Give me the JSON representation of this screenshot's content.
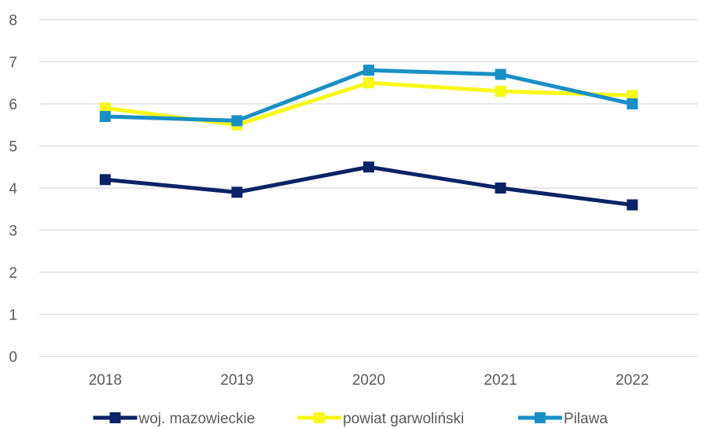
{
  "chart_data": {
    "type": "line",
    "title": "",
    "xlabel": "",
    "ylabel": "",
    "categories": [
      "2018",
      "2019",
      "2020",
      "2021",
      "2022"
    ],
    "ylim": [
      0,
      8
    ],
    "yticks": [
      0,
      1,
      2,
      3,
      4,
      5,
      6,
      7,
      8
    ],
    "grid": true,
    "legend_position": "bottom",
    "series": [
      {
        "name": "woj. mazowieckie",
        "color": "#0b2366",
        "values": [
          4.2,
          3.9,
          4.5,
          4.0,
          3.6
        ]
      },
      {
        "name": "powiat garwoliński",
        "color": "#f7f71a",
        "values": [
          5.9,
          5.5,
          6.5,
          6.3,
          6.2
        ]
      },
      {
        "name": "Pilawa",
        "color": "#1a8fc6",
        "values": [
          5.7,
          5.6,
          6.8,
          6.7,
          6.0
        ]
      }
    ]
  }
}
